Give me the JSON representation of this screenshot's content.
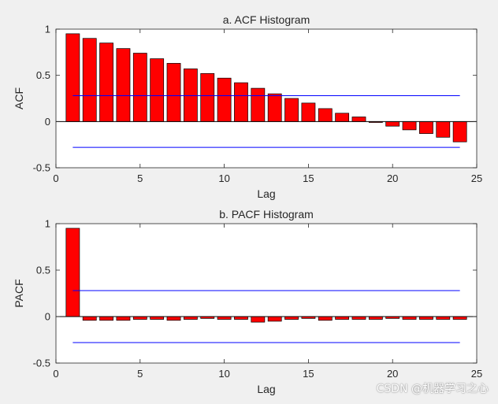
{
  "chart_data": [
    {
      "type": "bar",
      "title": "a. ACF Histogram",
      "xlabel": "Lag",
      "ylabel": "ACF",
      "xlim": [
        0,
        25
      ],
      "ylim": [
        -0.5,
        1
      ],
      "xticks": [
        "0",
        "5",
        "10",
        "15",
        "20",
        "25"
      ],
      "yticks": [
        "-0.5",
        "0",
        "0.5",
        "1"
      ],
      "x": [
        1,
        2,
        3,
        4,
        5,
        6,
        7,
        8,
        9,
        10,
        11,
        12,
        13,
        14,
        15,
        16,
        17,
        18,
        19,
        20,
        21,
        22,
        23,
        24
      ],
      "values": [
        0.95,
        0.9,
        0.85,
        0.79,
        0.74,
        0.68,
        0.63,
        0.57,
        0.52,
        0.47,
        0.42,
        0.36,
        0.3,
        0.25,
        0.2,
        0.14,
        0.09,
        0.05,
        -0.01,
        -0.05,
        -0.09,
        -0.13,
        -0.17,
        -0.22
      ],
      "confidence_bounds": [
        0.28,
        -0.28
      ],
      "bar_color": "#ff0000",
      "bound_color": "#0000ff",
      "grid": false
    },
    {
      "type": "bar",
      "title": "b. PACF Histogram",
      "xlabel": "Lag",
      "ylabel": "PACF",
      "xlim": [
        0,
        25
      ],
      "ylim": [
        -0.5,
        1
      ],
      "xticks": [
        "0",
        "5",
        "10",
        "15",
        "20",
        "25"
      ],
      "yticks": [
        "-0.5",
        "0",
        "0.5",
        "1"
      ],
      "x": [
        1,
        2,
        3,
        4,
        5,
        6,
        7,
        8,
        9,
        10,
        11,
        12,
        13,
        14,
        15,
        16,
        17,
        18,
        19,
        20,
        21,
        22,
        23,
        24
      ],
      "values": [
        0.95,
        -0.04,
        -0.04,
        -0.04,
        -0.03,
        -0.03,
        -0.04,
        -0.03,
        -0.02,
        -0.03,
        -0.03,
        -0.06,
        -0.05,
        -0.03,
        -0.02,
        -0.04,
        -0.03,
        -0.03,
        -0.03,
        -0.02,
        -0.03,
        -0.03,
        -0.03,
        -0.03
      ],
      "confidence_bounds": [
        0.28,
        -0.28
      ],
      "bar_color": "#ff0000",
      "bound_color": "#0000ff",
      "grid": false
    }
  ],
  "watermark": "CSDN @机器学习之心"
}
